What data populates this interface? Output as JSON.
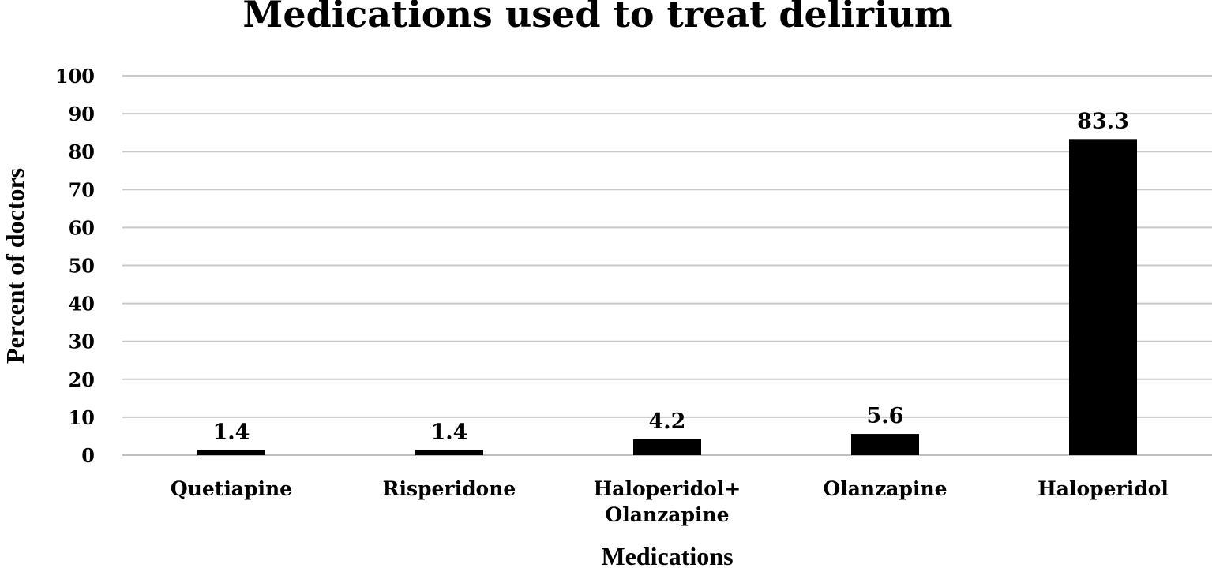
{
  "chart_data": {
    "type": "bar",
    "title": "Medications used to treat delirium",
    "xlabel": "Medications",
    "ylabel": "Percent of doctors",
    "categories": [
      [
        "Quetiapine"
      ],
      [
        "Risperidone"
      ],
      [
        "Haloperidol+",
        "Olanzapine"
      ],
      [
        "Olanzapine"
      ],
      [
        "Haloperidol"
      ]
    ],
    "values": [
      1.4,
      1.4,
      4.2,
      5.6,
      83.3
    ],
    "data_labels": [
      "1.4",
      "1.4",
      "4.2",
      "5.6",
      "83.3"
    ],
    "ylim": [
      0,
      100
    ],
    "yticks": [
      0,
      10,
      20,
      30,
      40,
      50,
      60,
      70,
      80,
      90,
      100
    ],
    "grid": true,
    "bar_color": "#000000"
  }
}
